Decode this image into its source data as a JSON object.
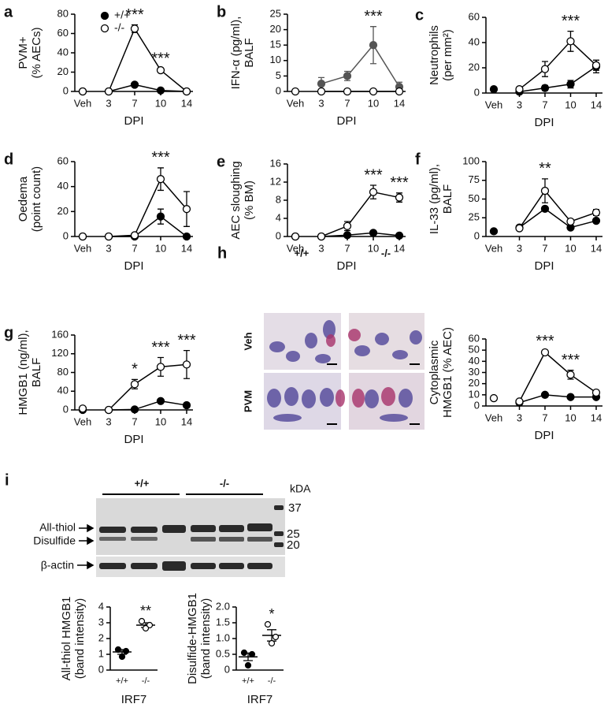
{
  "chart_data": [
    {
      "type": "line",
      "panel": "a",
      "ylabel": [
        "PVM+",
        "(% AECs)"
      ],
      "xlabel": "DPI",
      "categories": [
        "Veh",
        "3",
        "7",
        "10",
        "14"
      ],
      "ylim": [
        0,
        80
      ],
      "yticks": [
        0,
        20,
        40,
        60,
        80
      ],
      "legend": true,
      "legend_position": "upper-right",
      "series": [
        {
          "name": "+/+",
          "color": "#000000",
          "marker": "filled",
          "values": [
            0,
            0,
            7,
            1,
            0
          ],
          "errors": [
            0,
            0,
            1,
            0.5,
            0
          ]
        },
        {
          "name": "-/-",
          "color": "#000000",
          "marker": "open",
          "values": [
            0,
            0,
            65,
            22,
            0
          ],
          "errors": [
            0,
            0,
            4,
            1.5,
            0
          ]
        }
      ],
      "annotations": [
        {
          "text": "***",
          "x": "7"
        },
        {
          "text": "***",
          "x": "10"
        }
      ]
    },
    {
      "type": "line",
      "panel": "b",
      "ylabel": [
        "IFN-α (pg/ml),",
        "BALF"
      ],
      "xlabel": "DPI",
      "categories": [
        "Veh",
        "3",
        "7",
        "10",
        "14"
      ],
      "ylim": [
        0,
        25
      ],
      "yticks": [
        0,
        5,
        10,
        15,
        20,
        25
      ],
      "series": [
        {
          "name": "+/+",
          "color": "#555555",
          "marker": "filled",
          "values": [
            null,
            2.5,
            5,
            15,
            1.5
          ],
          "errors": [
            null,
            2,
            1.5,
            6,
            1.5
          ]
        },
        {
          "name": "-/-",
          "color": "#000000",
          "marker": "open",
          "values": [
            0,
            0,
            0,
            0,
            0
          ],
          "errors": [
            0,
            0,
            0,
            0,
            0
          ]
        }
      ],
      "annotations": [
        {
          "text": "***",
          "x": "10"
        }
      ]
    },
    {
      "type": "line",
      "panel": "c",
      "ylabel": [
        "Neutrophils",
        "(per mm²)"
      ],
      "xlabel": "DPI",
      "categories": [
        "Veh",
        "3",
        "7",
        "10",
        "14"
      ],
      "ylim": [
        0,
        60
      ],
      "yticks": [
        0,
        20,
        40,
        60
      ],
      "series": [
        {
          "name": "+/+",
          "color": "#000000",
          "marker": "filled",
          "values": [
            3,
            1,
            4,
            7,
            21
          ],
          "errors": [
            0,
            1,
            2,
            3,
            5
          ]
        },
        {
          "name": "-/-",
          "color": "#000000",
          "marker": "open",
          "values": [
            null,
            3,
            19,
            41,
            22
          ],
          "errors": [
            null,
            1,
            6,
            8,
            4
          ]
        }
      ],
      "annotations": [
        {
          "text": "***",
          "x": "10"
        }
      ]
    },
    {
      "type": "line",
      "panel": "d",
      "ylabel": [
        "Oedema",
        "(point count)"
      ],
      "xlabel": "DPI",
      "categories": [
        "Veh",
        "3",
        "7",
        "10",
        "14"
      ],
      "ylim": [
        0,
        60
      ],
      "yticks": [
        0,
        20,
        40,
        60
      ],
      "series": [
        {
          "name": "+/+",
          "color": "#000000",
          "marker": "filled",
          "values": [
            0,
            0,
            0,
            16,
            0
          ],
          "errors": [
            0,
            0,
            0,
            6,
            0
          ]
        },
        {
          "name": "-/-",
          "color": "#000000",
          "marker": "open",
          "values": [
            0,
            0,
            1,
            46,
            22
          ],
          "errors": [
            0,
            0,
            1,
            9,
            14
          ]
        }
      ],
      "annotations": [
        {
          "text": "***",
          "x": "10"
        }
      ]
    },
    {
      "type": "line",
      "panel": "e",
      "ylabel": [
        "AEC sloughing",
        "(% BM)"
      ],
      "xlabel": "DPI",
      "categories": [
        "Veh",
        "3",
        "7",
        "10",
        "14"
      ],
      "ylim": [
        0,
        16
      ],
      "yticks": [
        0,
        4,
        8,
        12,
        16
      ],
      "series": [
        {
          "name": "+/+",
          "color": "#000000",
          "marker": "filled",
          "values": [
            0,
            0,
            0.3,
            0.8,
            0.2
          ],
          "errors": [
            0,
            0,
            0.2,
            0.4,
            0
          ]
        },
        {
          "name": "-/-",
          "color": "#000000",
          "marker": "open",
          "values": [
            0,
            0,
            2.3,
            9.8,
            8.6
          ],
          "errors": [
            0,
            0,
            1,
            1.5,
            1
          ]
        }
      ],
      "annotations": [
        {
          "text": "***",
          "x": "10"
        },
        {
          "text": "***",
          "x": "14"
        }
      ]
    },
    {
      "type": "line",
      "panel": "f",
      "ylabel": [
        "IL-33 (pg/ml),",
        "BALF"
      ],
      "xlabel": "DPI",
      "categories": [
        "Veh",
        "3",
        "7",
        "10",
        "14"
      ],
      "ylim": [
        0,
        100
      ],
      "yticks": [
        0,
        25,
        50,
        75,
        100
      ],
      "series": [
        {
          "name": "+/+",
          "color": "#000000",
          "marker": "filled",
          "values": [
            7,
            12,
            37,
            12,
            21
          ],
          "errors": [
            0,
            0,
            0,
            0,
            0
          ]
        },
        {
          "name": "-/-",
          "color": "#000000",
          "marker": "open",
          "values": [
            null,
            11,
            61,
            20,
            32
          ],
          "errors": [
            null,
            1,
            16,
            3,
            4
          ]
        }
      ],
      "annotations": [
        {
          "text": "**",
          "x": "7"
        }
      ]
    },
    {
      "type": "line",
      "panel": "g",
      "ylabel": [
        "HMGB1 (ng/ml),",
        "BALF"
      ],
      "xlabel": "DPI",
      "categories": [
        "Veh",
        "3",
        "7",
        "10",
        "14"
      ],
      "ylim": [
        0,
        160
      ],
      "yticks": [
        0,
        40,
        80,
        120,
        160
      ],
      "series": [
        {
          "name": "+/+",
          "color": "#000000",
          "marker": "filled",
          "values": [
            0,
            0,
            1,
            19,
            10
          ],
          "errors": [
            0,
            0,
            0,
            0,
            0
          ]
        },
        {
          "name": "-/-",
          "color": "#000000",
          "marker": "open",
          "values": [
            3,
            0,
            55,
            92,
            97
          ],
          "errors": [
            0,
            0,
            10,
            20,
            30
          ]
        }
      ],
      "annotations": [
        {
          "text": "*",
          "x": "7"
        },
        {
          "text": "***",
          "x": "10"
        },
        {
          "text": "***",
          "x": "14"
        }
      ]
    },
    {
      "type": "line",
      "ylabel": [
        "Cytoplasmic",
        "HMGB1 (% AEC)"
      ],
      "xlabel": "DPI",
      "categories": [
        "Veh",
        "3",
        "7",
        "10",
        "14"
      ],
      "ylim": [
        0,
        60
      ],
      "yticks": [
        0,
        10,
        20,
        30,
        40,
        50,
        60
      ],
      "series": [
        {
          "name": "+/+",
          "color": "#000000",
          "marker": "filled",
          "values": [
            null,
            3,
            10,
            8,
            8
          ],
          "errors": [
            null,
            0,
            0,
            0,
            0
          ]
        },
        {
          "name": "-/-",
          "color": "#000000",
          "marker": "open",
          "values": [
            7,
            4,
            48,
            28,
            12
          ],
          "errors": [
            0,
            0,
            1,
            4,
            2
          ]
        }
      ],
      "annotations": [
        {
          "text": "***",
          "x": "7"
        },
        {
          "text": "***",
          "x": "10"
        }
      ]
    },
    {
      "type": "dot",
      "ylabel": [
        "All-thiol HMGB1",
        "(band intensity)"
      ],
      "xlabel": "IRF7",
      "categories": [
        "+/+",
        "-/-"
      ],
      "ylim": [
        0,
        4
      ],
      "yticks": [
        0,
        1,
        2,
        3,
        4
      ],
      "markers": [
        "filled",
        "open"
      ],
      "points": [
        [
          1.3,
          1.2,
          0.85
        ],
        [
          3.1,
          2.85,
          2.65
        ]
      ],
      "means": [
        1.15,
        2.85
      ],
      "sems": [
        0.15,
        0.15
      ],
      "annotations": [
        {
          "text": "**",
          "x": "-/-"
        }
      ]
    },
    {
      "type": "dot",
      "ylabel": [
        "Disulfide-HMGB1",
        "(band intensity)"
      ],
      "xlabel": "IRF7",
      "categories": [
        "+/+",
        "-/-"
      ],
      "ylim": [
        0,
        2
      ],
      "yticks": [
        0,
        0.5,
        {
          "value": 1,
          "label": "1.0"
        },
        1.5,
        {
          "value": 2,
          "label": "2.0"
        }
      ],
      "markers": [
        "filled",
        "open"
      ],
      "points": [
        [
          0.55,
          0.5,
          0.15
        ],
        [
          1.45,
          1.05,
          0.85
        ]
      ],
      "means": [
        0.42,
        1.1
      ],
      "sems": [
        0.12,
        0.18
      ],
      "annotations": [
        {
          "text": "*",
          "x": "-/-"
        }
      ]
    }
  ],
  "panel_h": {
    "label": "h",
    "columns": [
      "+/+",
      "-/-"
    ],
    "rows": [
      "Veh",
      "PVM"
    ]
  },
  "panel_i": {
    "label": "i",
    "groups": [
      "+/+",
      "-/-"
    ],
    "unit": "kDA",
    "markers": [
      "37",
      "25",
      "20"
    ],
    "bands": [
      "All-thiol",
      "Disulfide"
    ],
    "loading": "β-actin"
  }
}
